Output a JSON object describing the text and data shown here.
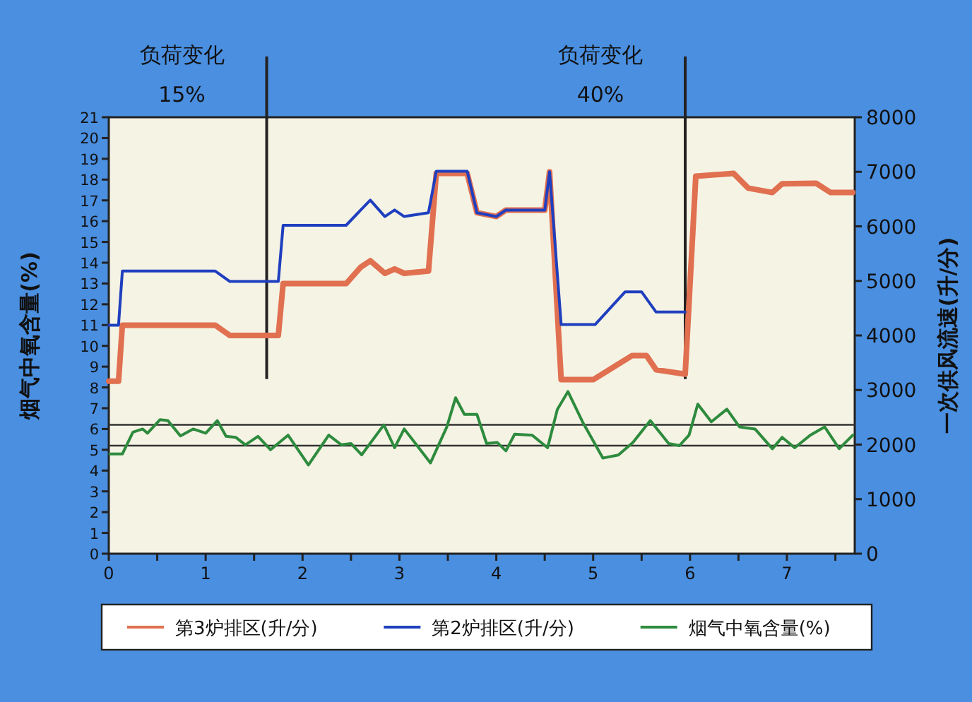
{
  "chart_data": {
    "type": "line",
    "ylabel": "烟气中氧含量(%)",
    "y2label": "一次供风流速(升/分)",
    "xlim": [
      0,
      7.7
    ],
    "xticks": [
      0,
      {
        "value": 0.5,
        "label": null
      },
      1,
      {
        "value": 1.5,
        "label": null
      },
      2,
      {
        "value": 2.5,
        "label": null
      },
      3,
      {
        "value": 3.5,
        "label": null
      },
      4,
      {
        "value": 4.5,
        "label": null
      },
      5,
      {
        "value": 5.5,
        "label": null
      },
      6,
      {
        "value": 6.5,
        "label": null
      },
      7,
      {
        "value": 7.5,
        "label": null
      }
    ],
    "ylim": [
      0,
      21
    ],
    "yticks": [
      0,
      1,
      2,
      3,
      4,
      5,
      6,
      7,
      8,
      9,
      10,
      11,
      12,
      13,
      14,
      15,
      16,
      17,
      18,
      19,
      20,
      21
    ],
    "y2lim": [
      0,
      8000
    ],
    "y2ticks": [
      0,
      1000,
      2000,
      3000,
      4000,
      5000,
      6000,
      7000,
      8000
    ],
    "legend": "bottom",
    "grid": false,
    "ref_lines": [
      {
        "axis": "x",
        "value": 1.63,
        "label": "负荷变化\n15%",
        "color": "#222222"
      },
      {
        "axis": "x",
        "value": 5.95,
        "label": "负荷变化\n40%",
        "color": "#222222"
      },
      {
        "axis": "y",
        "value": 6.2,
        "color": "#333333"
      },
      {
        "axis": "y",
        "value": 5.2,
        "color": "#333333"
      }
    ],
    "series": [
      {
        "name": "第3炉排区(升/分)",
        "color": "#e07050",
        "axis": "y2",
        "x": [
          0,
          0.1,
          0.14,
          1.1,
          1.25,
          1.75,
          1.8,
          2.45,
          2.6,
          2.7,
          2.85,
          2.95,
          3.05,
          3.3,
          3.38,
          3.7,
          3.8,
          4.0,
          4.1,
          4.5,
          4.55,
          4.67,
          5.0,
          5.4,
          5.55,
          5.65,
          5.95,
          6.06,
          6.45,
          6.6,
          6.85,
          6.95,
          7.3,
          7.45,
          7.68
        ],
        "values": [
          3160,
          3160,
          4190,
          4190,
          4000,
          4000,
          4950,
          4950,
          5250,
          5370,
          5140,
          5220,
          5140,
          5180,
          6970,
          6970,
          6250,
          6180,
          6300,
          6300,
          7000,
          3190,
          3190,
          3630,
          3630,
          3370,
          3290,
          6920,
          6970,
          6700,
          6620,
          6780,
          6790,
          6620,
          6620
        ]
      },
      {
        "name": "第2炉排区(升/分)",
        "color": "#1f3fbf",
        "axis": "y2",
        "x": [
          0,
          0.1,
          0.14,
          1.1,
          1.25,
          1.75,
          1.8,
          2.45,
          2.6,
          2.7,
          2.85,
          2.95,
          3.05,
          3.3,
          3.38,
          3.7,
          3.8,
          4.0,
          4.1,
          4.5,
          4.55,
          4.67,
          5.02,
          5.33,
          5.5,
          5.65,
          5.95
        ],
        "values": [
          4190,
          4190,
          5180,
          5180,
          4990,
          4990,
          6020,
          6020,
          6300,
          6480,
          6180,
          6300,
          6180,
          6250,
          7010,
          7010,
          6250,
          6180,
          6300,
          6300,
          7000,
          4200,
          4200,
          4800,
          4800,
          4430,
          4430
        ]
      },
      {
        "name": "烟气中氧含量(%)",
        "color": "#2e8b3e",
        "axis": "y",
        "x": [
          0.01,
          0.14,
          0.25,
          0.35,
          0.4,
          0.53,
          0.61,
          0.74,
          0.87,
          1.0,
          1.12,
          1.21,
          1.31,
          1.41,
          1.54,
          1.67,
          1.85,
          2.06,
          2.27,
          2.4,
          2.5,
          2.61,
          2.84,
          2.95,
          3.05,
          3.2,
          3.32,
          3.49,
          3.58,
          3.67,
          3.8,
          3.9,
          4.01,
          4.1,
          4.19,
          4.37,
          4.53,
          4.63,
          4.74,
          4.89,
          5.1,
          5.26,
          5.41,
          5.59,
          5.78,
          5.89,
          5.99,
          6.08,
          6.22,
          6.38,
          6.51,
          6.67,
          6.85,
          6.95,
          7.08,
          7.24,
          7.39,
          7.54,
          7.68
        ],
        "values": [
          4.8,
          4.8,
          5.85,
          6.0,
          5.8,
          6.45,
          6.4,
          5.67,
          6.0,
          5.8,
          6.4,
          5.65,
          5.6,
          5.24,
          5.65,
          5.0,
          5.7,
          4.27,
          5.7,
          5.24,
          5.3,
          4.76,
          6.2,
          5.1,
          6.0,
          5.1,
          4.37,
          6.1,
          7.5,
          6.7,
          6.7,
          5.3,
          5.35,
          4.95,
          5.75,
          5.7,
          5.1,
          6.94,
          7.8,
          6.35,
          4.6,
          4.75,
          5.35,
          6.4,
          5.3,
          5.2,
          5.7,
          7.2,
          6.35,
          6.95,
          6.1,
          6.0,
          5.05,
          5.6,
          5.1,
          5.7,
          6.1,
          5.05,
          5.7
        ]
      }
    ]
  }
}
